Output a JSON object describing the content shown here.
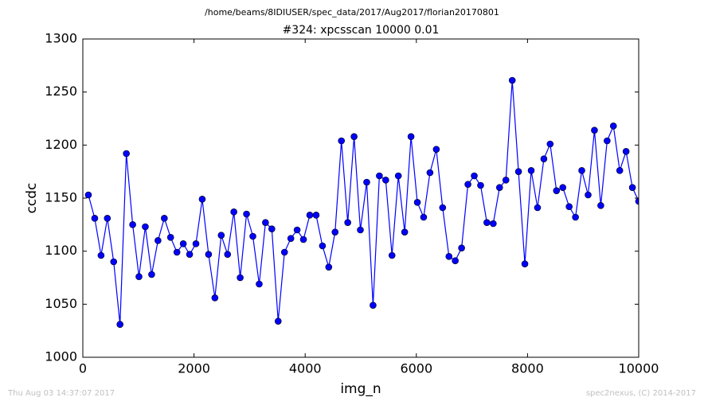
{
  "chart_data": {
    "type": "line",
    "suptitle": "/home/beams/8IDIUSER/spec_data/2017/Aug2017/florian20170801",
    "title": "#324: xpcsscan 10000 0.01",
    "xlabel": "img_n",
    "ylabel": "ccdc",
    "timestamp": "Thu Aug 03 14:37:07 2017",
    "credit": "spec2nexus, (C) 2014-2017",
    "xlim": [
      0,
      10000
    ],
    "xticks": [
      0,
      2000,
      4000,
      6000,
      8000,
      10000
    ],
    "ylim": [
      1000,
      1300
    ],
    "yticks": [
      1000,
      1050,
      1100,
      1150,
      1200,
      1250,
      1300
    ],
    "grid": false,
    "x": [
      100,
      214,
      328,
      441,
      555,
      669,
      783,
      897,
      1010,
      1124,
      1238,
      1352,
      1466,
      1579,
      1693,
      1807,
      1921,
      2035,
      2148,
      2262,
      2376,
      2490,
      2604,
      2717,
      2831,
      2945,
      3059,
      3173,
      3286,
      3400,
      3514,
      3628,
      3742,
      3855,
      3969,
      4083,
      4197,
      4311,
      4424,
      4538,
      4652,
      4766,
      4880,
      4993,
      5107,
      5221,
      5335,
      5449,
      5562,
      5676,
      5790,
      5904,
      6018,
      6131,
      6245,
      6359,
      6473,
      6587,
      6700,
      6814,
      6928,
      7042,
      7156,
      7269,
      7383,
      7497,
      7611,
      7725,
      7838,
      7952,
      8066,
      8180,
      8294,
      8407,
      8521,
      8635,
      8749,
      8863,
      8976,
      9090,
      9204,
      9318,
      9432,
      9545,
      9659,
      9773,
      9887,
      10000
    ],
    "series": [
      {
        "name": "ccdc",
        "color": "#0000ff",
        "values": [
          1153,
          1131,
          1096,
          1131,
          1090,
          1031,
          1192,
          1125,
          1076,
          1123,
          1078,
          1110,
          1131,
          1113,
          1099,
          1107,
          1097,
          1107,
          1149,
          1097,
          1056,
          1115,
          1097,
          1137,
          1075,
          1135,
          1114,
          1069,
          1127,
          1121,
          1034,
          1099,
          1112,
          1120,
          1111,
          1134,
          1134,
          1105,
          1085,
          1118,
          1204,
          1127,
          1208,
          1120,
          1165,
          1049,
          1171,
          1167,
          1096,
          1171,
          1118,
          1208,
          1146,
          1132,
          1174,
          1196,
          1141,
          1095,
          1091,
          1103,
          1163,
          1171,
          1162,
          1127,
          1126,
          1160,
          1167,
          1261,
          1175,
          1088,
          1176,
          1141,
          1187,
          1201,
          1157,
          1160,
          1142,
          1132,
          1176,
          1153,
          1214,
          1143,
          1204,
          1218,
          1176,
          1194,
          1160,
          1147
        ]
      }
    ]
  }
}
